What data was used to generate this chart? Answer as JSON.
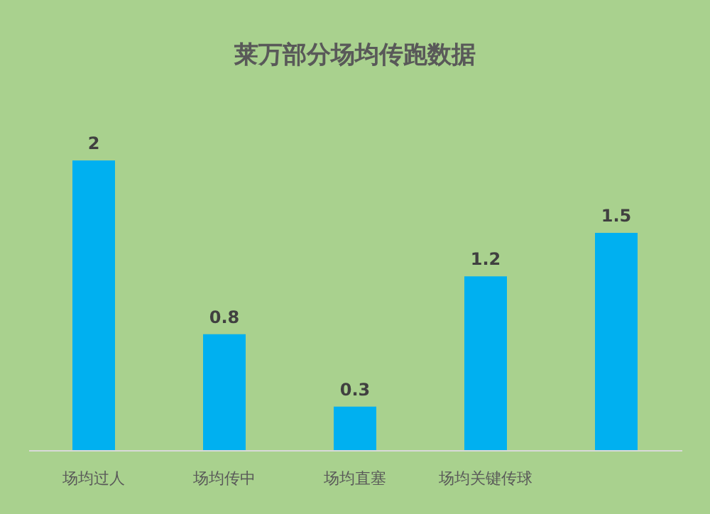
{
  "chart_data": {
    "type": "bar",
    "title": "莱万部分场均传跑数据",
    "categories": [
      "场均过人",
      "场均传中",
      "场均直塞",
      "场均关键传球",
      null
    ],
    "values": [
      2,
      0.8,
      0.3,
      1.2,
      1.5
    ],
    "color": "#00b0f0",
    "data_labels": true,
    "grid": false
  }
}
